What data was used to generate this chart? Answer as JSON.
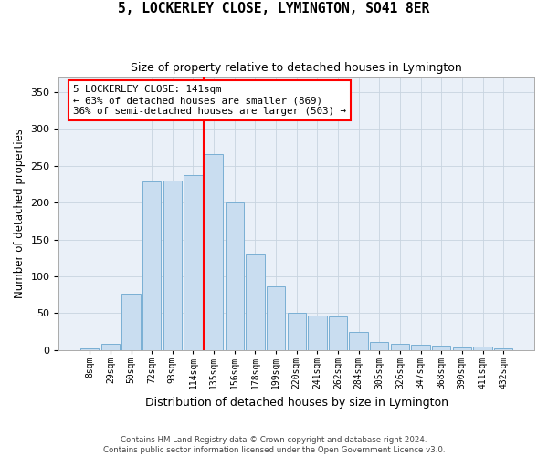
{
  "title": "5, LOCKERLEY CLOSE, LYMINGTON, SO41 8ER",
  "subtitle": "Size of property relative to detached houses in Lymington",
  "xlabel": "Distribution of detached houses by size in Lymington",
  "ylabel": "Number of detached properties",
  "bar_color": "#c9ddf0",
  "bar_edge_color": "#7aafd4",
  "grid_color": "#c8d4e0",
  "bg_color": "#eaf0f8",
  "categories": [
    "8sqm",
    "29sqm",
    "50sqm",
    "72sqm",
    "93sqm",
    "114sqm",
    "135sqm",
    "156sqm",
    "178sqm",
    "199sqm",
    "220sqm",
    "241sqm",
    "262sqm",
    "284sqm",
    "305sqm",
    "326sqm",
    "347sqm",
    "368sqm",
    "390sqm",
    "411sqm",
    "432sqm"
  ],
  "values": [
    2,
    8,
    77,
    228,
    230,
    237,
    265,
    200,
    130,
    87,
    50,
    47,
    46,
    25,
    11,
    9,
    7,
    6,
    4,
    5,
    3
  ],
  "property_bin_index": 6,
  "annotation_line1": "5 LOCKERLEY CLOSE: 141sqm",
  "annotation_line2": "← 63% of detached houses are smaller (869)",
  "annotation_line3": "36% of semi-detached houses are larger (503) →",
  "ylim": [
    0,
    370
  ],
  "yticks": [
    0,
    50,
    100,
    150,
    200,
    250,
    300,
    350
  ],
  "footer1": "Contains HM Land Registry data © Crown copyright and database right 2024.",
  "footer2": "Contains public sector information licensed under the Open Government Licence v3.0."
}
